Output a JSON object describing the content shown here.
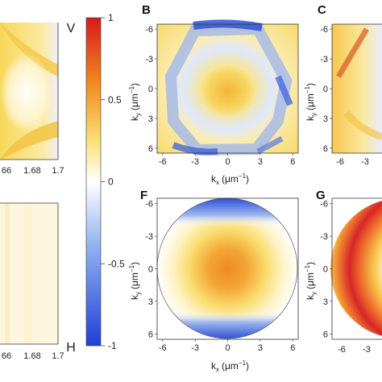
{
  "panels": {
    "B": "B",
    "C": "C",
    "F": "F",
    "G": "G"
  },
  "colorbar": {
    "ticks": [
      "1",
      "0.5",
      "0",
      "-0.5",
      "-1"
    ],
    "tick_values": [
      1,
      0.5,
      0,
      -0.5,
      -1
    ],
    "top_label": "V",
    "bottom_label": "H",
    "colors": [
      "#d7191c",
      "#f28a1e",
      "#fbe27a",
      "#ffffff",
      "#8fb0ee",
      "#1f3fd8"
    ]
  },
  "left_axes": {
    "x_ticks": [
      "66",
      "1.68",
      "1.7"
    ]
  },
  "maps": {
    "x_ticks": [
      "-6",
      "-3",
      "0",
      "3",
      "6"
    ],
    "y_ticks": [
      "-6",
      "-3",
      "0",
      "3",
      "6"
    ],
    "xlabel": "k",
    "xlabel_sub": "x",
    "xlabel_unit": "(μm",
    "ylabel": "k",
    "ylabel_sub": "y",
    "ylabel_unit": "(μm",
    "unit_exp": "−1",
    "range": [
      -6.5,
      6.5
    ]
  }
}
